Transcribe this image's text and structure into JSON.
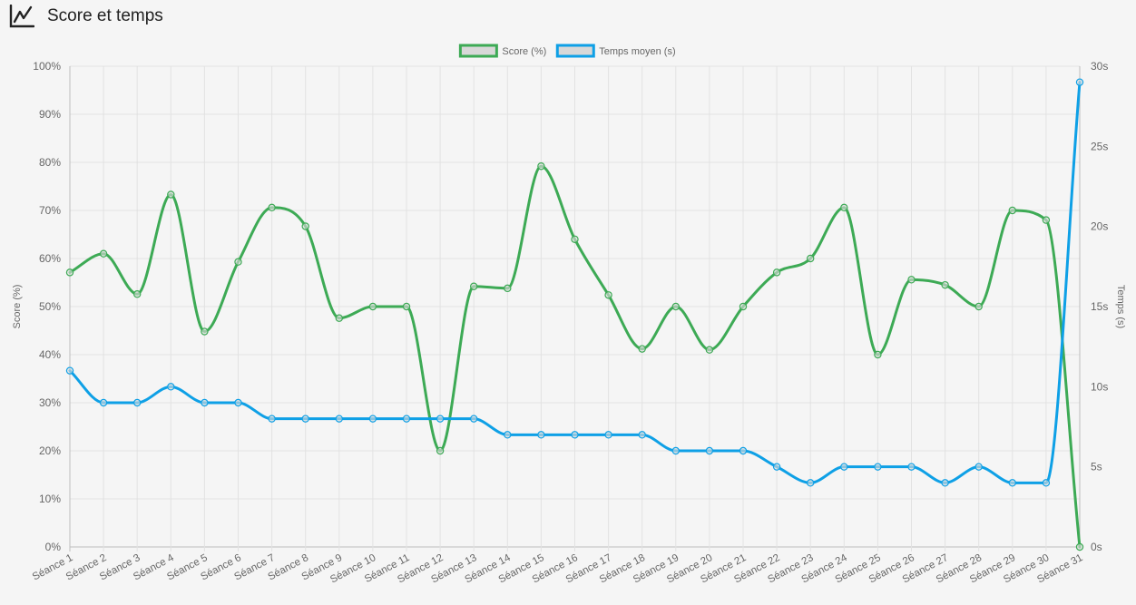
{
  "header": {
    "title": "Score et temps",
    "icon": "line-chart-icon"
  },
  "legend": {
    "placement": "top-center",
    "items": [
      {
        "label": "Score (%)",
        "color": "#3daa55"
      },
      {
        "label": "Temps moyen (s)",
        "color": "#0ea0e6"
      }
    ]
  },
  "chart_data": {
    "type": "line",
    "title": "",
    "xlabel": "",
    "ylabel_left": "Score (%)",
    "ylabel_right": "Temps (s)",
    "ylim_left": [
      0,
      100
    ],
    "ylim_right": [
      0,
      30
    ],
    "y_left_ticks": [
      "0%",
      "10%",
      "20%",
      "30%",
      "40%",
      "50%",
      "60%",
      "70%",
      "80%",
      "90%",
      "100%"
    ],
    "y_right_ticks": [
      "0s",
      "5s",
      "10s",
      "15s",
      "20s",
      "25s",
      "30s"
    ],
    "grid": true,
    "categories": [
      "Séance 1",
      "Séance 2",
      "Séance 3",
      "Séance 4",
      "Séance 5",
      "Séance 6",
      "Séance 7",
      "Séance 8",
      "Séance 9",
      "Séance 10",
      "Séance 11",
      "Séance 12",
      "Séance 13",
      "Séance 14",
      "Séance 15",
      "Séance 16",
      "Séance 17",
      "Séance 18",
      "Séance 19",
      "Séance 20",
      "Séance 21",
      "Séance 22",
      "Séance 23",
      "Séance 24",
      "Séance 25",
      "Séance 26",
      "Séance 27",
      "Séance 28",
      "Séance 29",
      "Séance 30",
      "Séance 31"
    ],
    "series": [
      {
        "name": "Score (%)",
        "axis": "left",
        "color": "#3daa55",
        "values": [
          57.1,
          61,
          52.6,
          73.3,
          44.8,
          59.3,
          70.6,
          66.7,
          47.6,
          50,
          50,
          20,
          54.2,
          53.8,
          79.2,
          64,
          52.4,
          41.2,
          50,
          41,
          50,
          57.1,
          60,
          70.6,
          40,
          55.6,
          54.5,
          50,
          70,
          68,
          0
        ]
      },
      {
        "name": "Temps moyen (s)",
        "axis": "right",
        "color": "#0ea0e6",
        "values": [
          11,
          9,
          9,
          10,
          9,
          9,
          8,
          8,
          8,
          8,
          8,
          8,
          8,
          7,
          7,
          7,
          7,
          7,
          6,
          6,
          6,
          5,
          4,
          5,
          5,
          5,
          4,
          5,
          4,
          4,
          29
        ]
      }
    ]
  }
}
